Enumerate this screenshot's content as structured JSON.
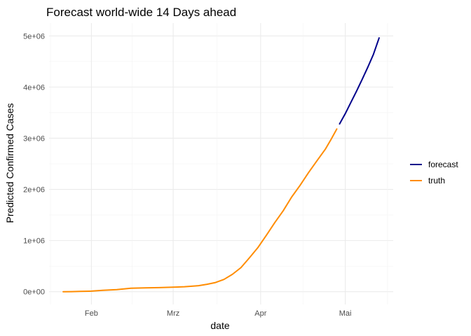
{
  "chart_data": {
    "type": "line",
    "title": "Forecast world-wide 14 Days ahead",
    "xlabel": "date",
    "ylabel": "Predicted Confirmed Cases",
    "x_ticks": [
      {
        "label": "Feb",
        "date": "2020-02-01"
      },
      {
        "label": "Mrz",
        "date": "2020-03-01"
      },
      {
        "label": "Apr",
        "date": "2020-04-01"
      },
      {
        "label": "Mai",
        "date": "2020-05-01"
      }
    ],
    "y_ticks": [
      {
        "label": "0e+00",
        "value": 0
      },
      {
        "label": "1e+06",
        "value": 1000000
      },
      {
        "label": "2e+06",
        "value": 2000000
      },
      {
        "label": "3e+06",
        "value": 3000000
      },
      {
        "label": "4e+06",
        "value": 4000000
      },
      {
        "label": "5e+06",
        "value": 5000000
      }
    ],
    "xlim": [
      "2020-01-17",
      "2020-05-18"
    ],
    "ylim": [
      -250000,
      5250000
    ],
    "grid": true,
    "legend_position": "right",
    "series": [
      {
        "name": "forecast",
        "color": "#00008B",
        "points": [
          [
            "2020-04-29",
            3280000
          ],
          [
            "2020-05-01",
            3480000
          ],
          [
            "2020-05-03",
            3700000
          ],
          [
            "2020-05-05",
            3920000
          ],
          [
            "2020-05-07",
            4150000
          ],
          [
            "2020-05-09",
            4390000
          ],
          [
            "2020-05-11",
            4640000
          ],
          [
            "2020-05-13",
            4960000
          ]
        ]
      },
      {
        "name": "truth",
        "color": "#FF8C00",
        "points": [
          [
            "2020-01-22",
            550
          ],
          [
            "2020-01-25",
            2000
          ],
          [
            "2020-01-28",
            6000
          ],
          [
            "2020-02-01",
            12000
          ],
          [
            "2020-02-05",
            28000
          ],
          [
            "2020-02-10",
            42000
          ],
          [
            "2020-02-15",
            69000
          ],
          [
            "2020-02-20",
            76000
          ],
          [
            "2020-02-25",
            80000
          ],
          [
            "2020-03-01",
            88000
          ],
          [
            "2020-03-05",
            97000
          ],
          [
            "2020-03-08",
            110000
          ],
          [
            "2020-03-10",
            118000
          ],
          [
            "2020-03-13",
            145000
          ],
          [
            "2020-03-16",
            180000
          ],
          [
            "2020-03-19",
            240000
          ],
          [
            "2020-03-22",
            340000
          ],
          [
            "2020-03-25",
            470000
          ],
          [
            "2020-03-28",
            660000
          ],
          [
            "2020-03-31",
            860000
          ],
          [
            "2020-04-03",
            1100000
          ],
          [
            "2020-04-06",
            1350000
          ],
          [
            "2020-04-09",
            1580000
          ],
          [
            "2020-04-12",
            1850000
          ],
          [
            "2020-04-15",
            2080000
          ],
          [
            "2020-04-18",
            2330000
          ],
          [
            "2020-04-21",
            2560000
          ],
          [
            "2020-04-24",
            2790000
          ],
          [
            "2020-04-26",
            2980000
          ],
          [
            "2020-04-28",
            3180000
          ]
        ]
      }
    ]
  }
}
